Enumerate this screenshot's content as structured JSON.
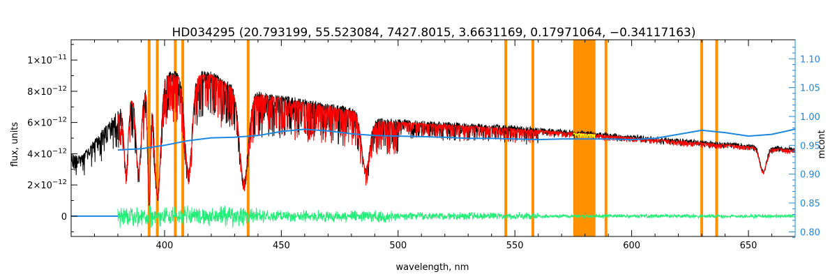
{
  "chart_data": {
    "type": "line",
    "title": "HD034295    (20.793199, 55.523084, 7427.8015, 3.6631169, 0.17971064, −0.34117163)",
    "xlabel": "wavelength, nm",
    "ylabel": "flux, units",
    "y2label": "mcont",
    "xlim": [
      360,
      670
    ],
    "ylim": [
      -1.3e-12,
      1.13e-11
    ],
    "y2lim": [
      0.792,
      1.133
    ],
    "xticks": [
      400,
      450,
      500,
      550,
      600,
      650
    ],
    "xtick_labels": [
      "400",
      "450",
      "500",
      "550",
      "600",
      "650"
    ],
    "yticks": [
      0,
      2e-12,
      4e-12,
      6e-12,
      8e-12,
      1e-11
    ],
    "ytick_labels": [
      {
        "mantissa": "0",
        "exponent": ""
      },
      {
        "mantissa": "2×10",
        "exponent": "−12"
      },
      {
        "mantissa": "4×10",
        "exponent": "−12"
      },
      {
        "mantissa": "6×10",
        "exponent": "−12"
      },
      {
        "mantissa": "8×10",
        "exponent": "−12"
      },
      {
        "mantissa": "1×10",
        "exponent": "−11"
      }
    ],
    "y2ticks": [
      0.8,
      0.85,
      0.9,
      0.95,
      1.0,
      1.05,
      1.1
    ],
    "y2tick_labels": [
      "0.80",
      "0.85",
      "0.90",
      "0.95",
      "1.00",
      "1.05",
      "1.10"
    ],
    "masked_lines_nm": [
      393.4,
      396.9,
      404.6,
      407.8,
      435.8,
      546.1,
      557.7,
      589.0,
      630.0,
      636.4
    ],
    "masked_band_nm": [
      575,
      584.5
    ],
    "continuum_x_range": [
      380,
      670
    ],
    "continuum_y_range": [
      360,
      380
    ],
    "absorption_features": [
      {
        "center": 383.5,
        "depth": 0.6,
        "width": 1.2
      },
      {
        "center": 388.9,
        "depth": 0.62,
        "width": 1.5
      },
      {
        "center": 393.4,
        "depth": 0.9,
        "width": 0.8
      },
      {
        "center": 397.0,
        "depth": 0.85,
        "width": 1.8
      },
      {
        "center": 410.2,
        "depth": 0.68,
        "width": 2.2
      },
      {
        "center": 434.0,
        "depth": 0.72,
        "width": 2.6
      },
      {
        "center": 486.1,
        "depth": 0.55,
        "width": 2.4
      },
      {
        "center": 656.3,
        "depth": 0.35,
        "width": 2.0
      }
    ],
    "series": [
      {
        "name": "observed",
        "color": "#000000"
      },
      {
        "name": "model",
        "color": "#ff0000"
      },
      {
        "name": "masked",
        "color": "#ffff00"
      },
      {
        "name": "residual",
        "color": "#22ee77"
      },
      {
        "name": "mcont",
        "color": "#1b87e0",
        "axis": "right",
        "x": [
          380,
          390,
          400,
          410,
          420,
          430,
          440,
          450,
          460,
          470,
          480,
          490,
          500,
          510,
          520,
          530,
          540,
          550,
          560,
          570,
          580,
          590,
          600,
          610,
          620,
          630,
          640,
          650,
          660,
          670
        ],
        "y": [
          0.942,
          0.944,
          0.95,
          0.958,
          0.963,
          0.964,
          0.967,
          0.974,
          0.978,
          0.975,
          0.97,
          0.967,
          0.966,
          0.965,
          0.964,
          0.962,
          0.962,
          0.961,
          0.96,
          0.961,
          0.961,
          0.961,
          0.96,
          0.962,
          0.969,
          0.976,
          0.972,
          0.966,
          0.969,
          0.978
        ]
      }
    ],
    "colors": {
      "axis_right": "#1b87e0",
      "mask": "#ff9000"
    }
  }
}
